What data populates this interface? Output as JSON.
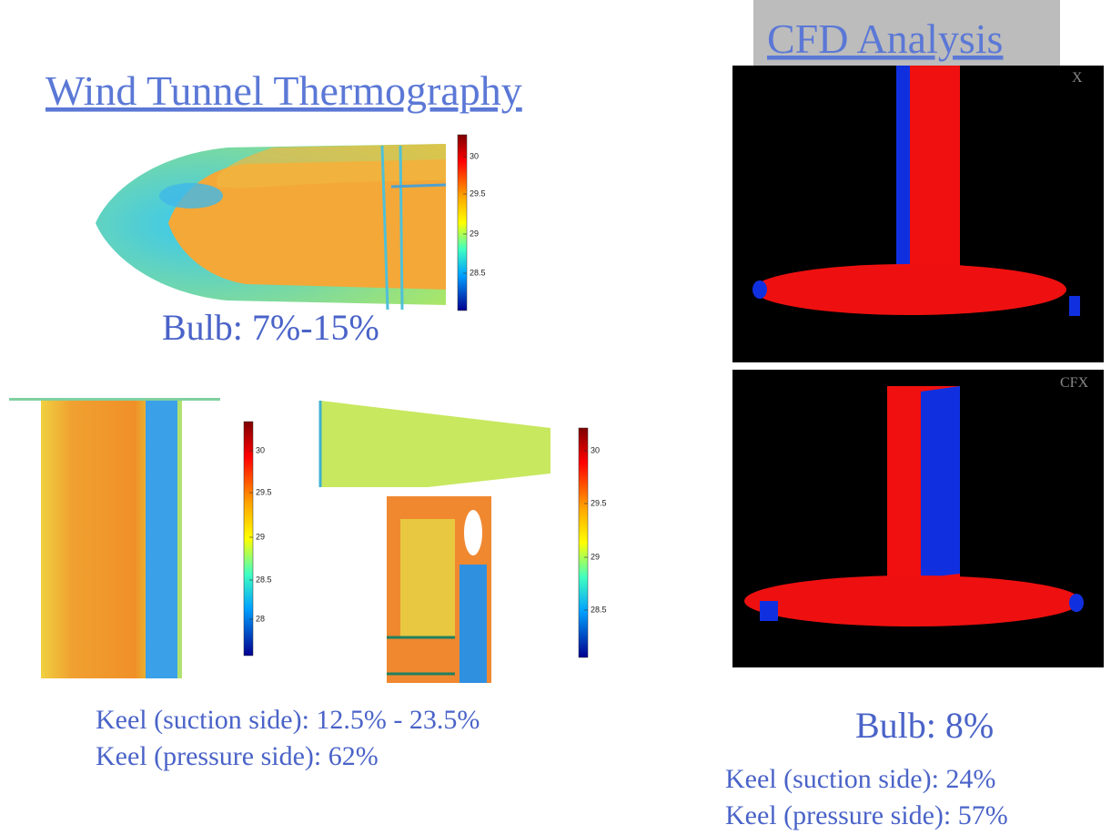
{
  "left": {
    "title": "Wind Tunnel Thermography",
    "bulb_colorbar": [
      "30",
      "29.5",
      "29",
      "28.5"
    ],
    "bulb_caption": "Bulb: 7%-15%",
    "keel_suction_colorbar": [
      "30",
      "29.5",
      "29",
      "28.5",
      "28"
    ],
    "keel_pressure_colorbar": [
      "30",
      "29.5",
      "29",
      "28.5"
    ],
    "captions": [
      "Keel (suction side):  12.5% - 23.5%",
      "Keel (pressure side): 62%"
    ]
  },
  "right": {
    "title": "CFD Analysis",
    "logos": [
      "X",
      "CFX"
    ],
    "bulb_caption": "Bulb: 8%",
    "captions": [
      "Keel (suction side):  24%",
      "Keel (pressure side): 57%"
    ]
  }
}
